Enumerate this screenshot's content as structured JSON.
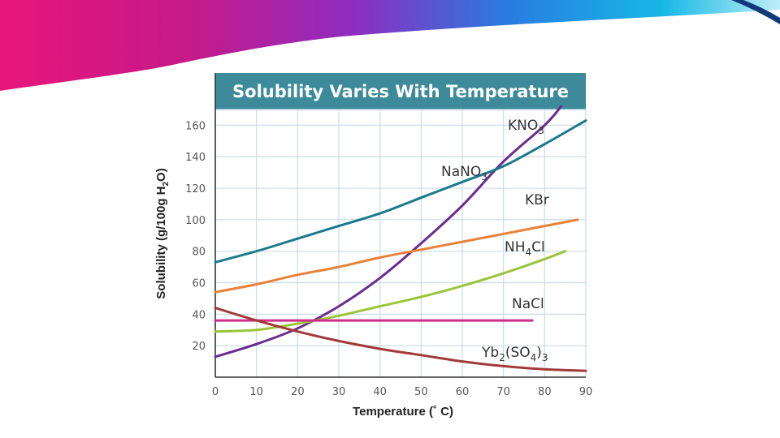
{
  "slide": {
    "banner_colors": [
      "#e8157a",
      "#c41a8a",
      "#8f2cc0",
      "#2a7be0",
      "#16b8e6",
      "#bdeef7"
    ]
  },
  "chart_data": {
    "type": "line",
    "title": "Solubility Varies With Temperature",
    "xlabel": "Temperature (˚ C)",
    "ylabel": "Solubility (g/100g H2O)",
    "ylabel_parts": {
      "before": "Solubility (g/100g H",
      "subscript": "2",
      "after": "O)"
    },
    "xlim": [
      0,
      90
    ],
    "ylim": [
      0,
      170
    ],
    "x_ticks": [
      0,
      10,
      20,
      30,
      40,
      50,
      60,
      70,
      80,
      90
    ],
    "y_ticks": [
      20,
      40,
      60,
      80,
      100,
      120,
      140,
      160
    ],
    "grid": true,
    "colors": {
      "title_bar": "#3d8b9a",
      "grid": "#c9dde6",
      "axis": "#333333"
    },
    "series": [
      {
        "name": "KNO3",
        "label_parts": [
          {
            "t": "KNO"
          },
          {
            "t": "3",
            "sub": true
          }
        ],
        "color": "#6a2c8e",
        "x": [
          0,
          10,
          20,
          30,
          40,
          50,
          60,
          70,
          80,
          84
        ],
        "y": [
          13,
          21,
          31,
          45,
          63,
          85,
          109,
          137,
          160,
          172
        ]
      },
      {
        "name": "NaNO3",
        "label_parts": [
          {
            "t": "NaNO"
          },
          {
            "t": "3",
            "sub": true
          }
        ],
        "color": "#1a7a8c",
        "x": [
          0,
          10,
          20,
          30,
          40,
          50,
          60,
          70,
          80,
          90
        ],
        "y": [
          73,
          80,
          88,
          96,
          104,
          114,
          124,
          134,
          148,
          163
        ]
      },
      {
        "name": "KBr",
        "label_parts": [
          {
            "t": "KBr"
          }
        ],
        "color": "#e8823a",
        "x": [
          0,
          10,
          20,
          30,
          40,
          50,
          60,
          70,
          80,
          88
        ],
        "y": [
          54,
          59,
          65,
          70,
          76,
          81,
          86,
          91,
          96,
          100
        ]
      },
      {
        "name": "NH4Cl",
        "label_parts": [
          {
            "t": "NH"
          },
          {
            "t": "4",
            "sub": true
          },
          {
            "t": "Cl"
          }
        ],
        "color": "#9cc43a",
        "x": [
          0,
          10,
          20,
          30,
          40,
          50,
          60,
          70,
          80,
          85
        ],
        "y": [
          29,
          30,
          34,
          39,
          45,
          51,
          58,
          66,
          75,
          80
        ]
      },
      {
        "name": "NaCl",
        "label_parts": [
          {
            "t": "NaCl"
          }
        ],
        "color": "#cc2f8a",
        "x": [
          0,
          77
        ],
        "y": [
          36,
          36
        ]
      },
      {
        "name": "Yb2(SO4)3",
        "label_parts": [
          {
            "t": "Yb"
          },
          {
            "t": "2",
            "sub": true
          },
          {
            "t": "(SO"
          },
          {
            "t": "4",
            "sub": true
          },
          {
            "t": ")"
          },
          {
            "t": "3",
            "sub": true
          }
        ],
        "color": "#a23a3a",
        "x": [
          0,
          10,
          20,
          30,
          40,
          50,
          60,
          70,
          80,
          90
        ],
        "y": [
          44,
          36,
          29,
          23,
          18,
          14,
          10,
          7,
          5,
          4
        ]
      }
    ]
  }
}
